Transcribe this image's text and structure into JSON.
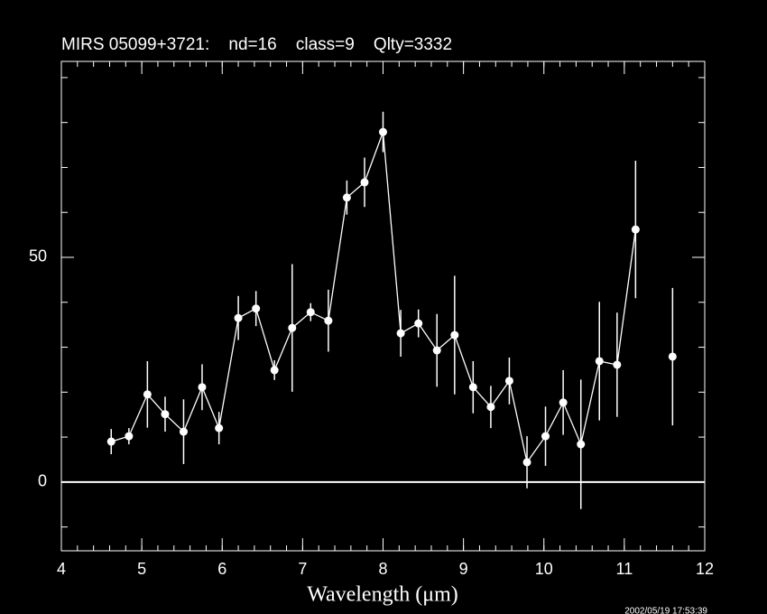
{
  "chart_data": {
    "type": "line",
    "title": "MIRS 05099+3721:    nd=16    class=9    Qlty=3332",
    "xlabel": "Wavelength (μm)",
    "footer": "2002/05/19 17:53:39",
    "xlim": [
      4,
      12
    ],
    "xticks": [
      4,
      5,
      6,
      7,
      8,
      9,
      10,
      11,
      12
    ],
    "xminor_step": 0.2,
    "ylim": [
      -15.3,
      93.6
    ],
    "yticks": [
      0,
      50
    ],
    "yminor_step": 10,
    "hline": 0,
    "color": "#ffffff",
    "series": [
      {
        "line": true,
        "x": [
          4.62,
          4.84,
          5.07,
          5.29,
          5.52,
          5.75,
          5.96,
          6.2,
          6.42,
          6.65,
          6.87,
          7.1,
          7.32,
          7.55,
          7.77,
          8.0,
          8.22,
          8.44,
          8.67,
          8.89,
          9.12,
          9.34,
          9.57,
          9.79,
          10.02,
          10.24,
          10.46,
          10.69,
          10.91,
          11.14
        ],
        "values": [
          9.0,
          10.2,
          19.5,
          15.1,
          11.2,
          21.1,
          12.0,
          36.5,
          38.6,
          24.9,
          34.3,
          37.8,
          35.9,
          63.3,
          66.7,
          77.9,
          33.1,
          35.3,
          29.3,
          32.7,
          21.1,
          16.7,
          22.5,
          4.4,
          10.2,
          17.7,
          8.4,
          26.9,
          26.1,
          56.2
        ],
        "errors": [
          2.8,
          1.8,
          7.4,
          3.9,
          7.2,
          5.1,
          3.6,
          4.9,
          3.9,
          2.2,
          14.2,
          2.0,
          6.9,
          3.8,
          5.5,
          4.5,
          5.2,
          3.1,
          8.1,
          13.2,
          5.8,
          4.7,
          5.2,
          5.8,
          6.6,
          7.2,
          14.4,
          13.2,
          11.6,
          15.3
        ]
      },
      {
        "line": false,
        "x": [
          11.6
        ],
        "values": [
          27.9
        ],
        "errors": [
          15.3
        ]
      }
    ]
  }
}
